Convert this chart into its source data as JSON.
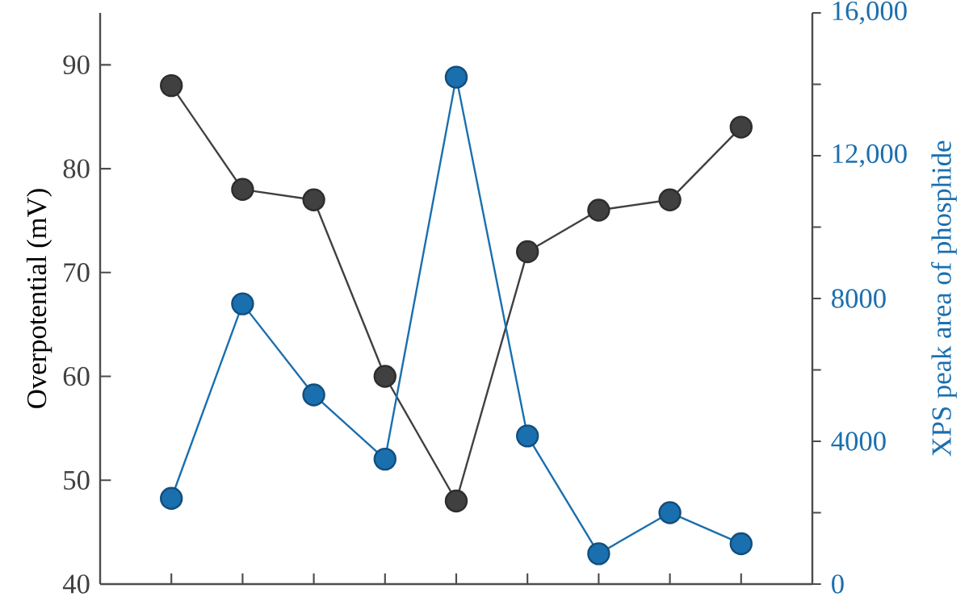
{
  "chart_data": {
    "type": "line",
    "ylabel": "Overpotential (mV)",
    "y2label": "XPS peak area of phosphide",
    "categories": [
      null,
      null,
      null,
      null,
      null,
      null,
      null,
      null,
      null
    ],
    "ylim": [
      40,
      95
    ],
    "yticks": [
      40,
      50,
      60,
      70,
      80,
      90
    ],
    "y2lim": [
      0,
      16000
    ],
    "y2ticks": [
      0,
      {
        "value": 2000,
        "label": null
      },
      4000,
      {
        "value": 6000,
        "label": null
      },
      8000,
      {
        "value": 10000,
        "label": null
      },
      {
        "value": 12000,
        "label": "12,000"
      },
      {
        "value": 14000,
        "label": null
      },
      {
        "value": 16000,
        "label": "16,000"
      }
    ],
    "marker": "circle",
    "series": [
      {
        "color": "#404040",
        "values": [
          88,
          78,
          77,
          60,
          48,
          72,
          76,
          77,
          84
        ]
      },
      {
        "color": "#1a6faf",
        "axis": "y2",
        "values": [
          2400,
          7850,
          5300,
          3500,
          14200,
          4150,
          850,
          2000,
          1130
        ]
      }
    ]
  }
}
